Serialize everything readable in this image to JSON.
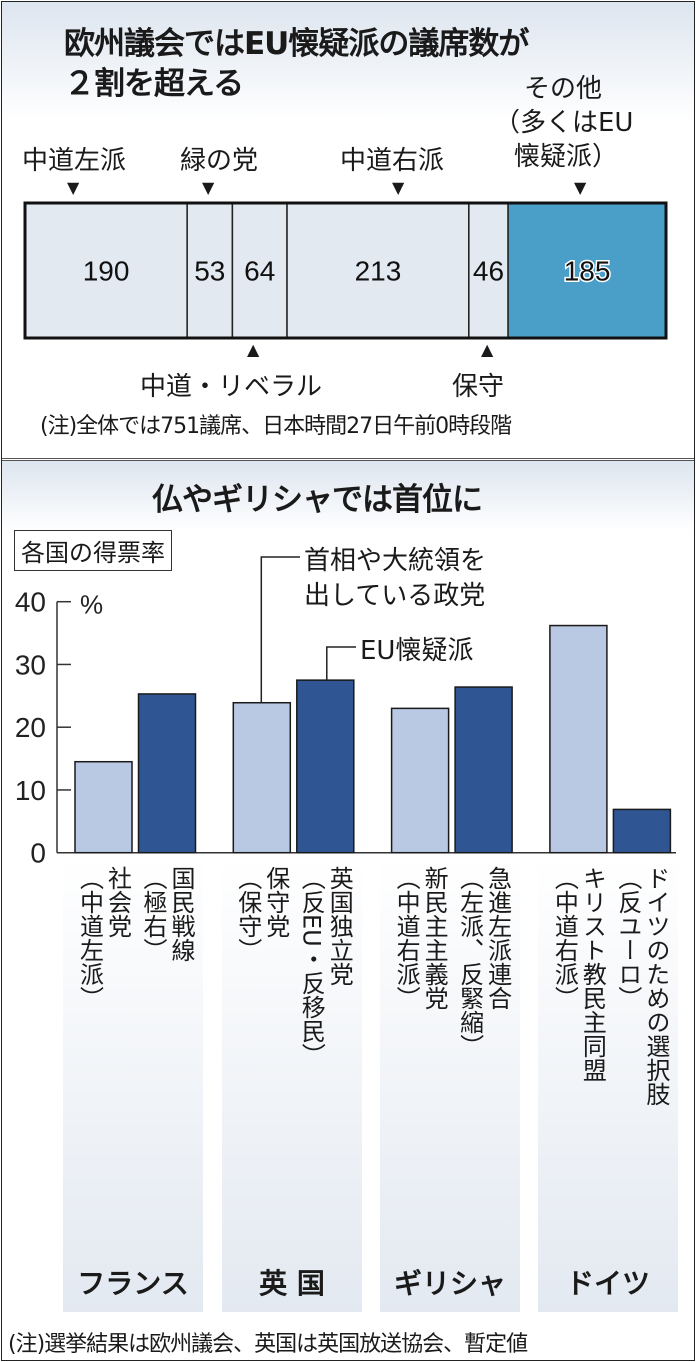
{
  "section1": {
    "title_line1": "欧州議会ではEU懐疑派の議席数が",
    "title_line2": "２割を超える",
    "labels_top": {
      "center_left": "中道左派",
      "greens": "緑の党",
      "center_right": "中道右派",
      "others_line1": "その他",
      "others_line2": "（多くはEU",
      "others_line3": "懐疑派）"
    },
    "labels_bottom": {
      "liberal": "中道・リベラル",
      "conservative": "保守"
    },
    "note": "(注)全体では751議席、日本時間27日午前0時段階"
  },
  "section2": {
    "title": "仏やギリシャでは首位に",
    "box_label": "各国の得票率",
    "annotation_leader_line1": "首相や大統領を",
    "annotation_leader_line2": "出している政党",
    "annotation_eurosceptic": "EU懐疑派",
    "note": "(注)選挙結果は欧州議会、英国は英国放送協会、暫定値"
  },
  "chart_data": [
    {
      "type": "bar",
      "orientation": "horizontal-stacked",
      "total": 751,
      "categories": [
        "中道左派",
        "緑の党",
        "中道・リベラル",
        "中道右派",
        "保守",
        "その他（多くはEU懐疑派）"
      ],
      "values": [
        190,
        53,
        64,
        213,
        46,
        185
      ],
      "value_labels": [
        "190",
        "53",
        "64",
        "213",
        "46",
        "185"
      ],
      "colors": [
        "#e3e9f1",
        "#e3e9f1",
        "#e3e9f1",
        "#e3e9f1",
        "#e3e9f1",
        "#4a9fc9"
      ]
    },
    {
      "type": "bar",
      "ylabel": "%",
      "ylim": [
        0,
        40
      ],
      "yticks": [
        "0",
        "10",
        "20",
        "30",
        "40"
      ],
      "grid": false,
      "groups": [
        {
          "country": "フランス",
          "bars": [
            {
              "label": "社会党\n（中道左派）",
              "value": 14.5,
              "kind": "leader"
            },
            {
              "label": "国民戦線\n（極右）",
              "value": 25.3,
              "kind": "eurosceptic"
            }
          ]
        },
        {
          "country": "英 国",
          "bars": [
            {
              "label": "保守党\n（保守）",
              "value": 23.9,
              "kind": "leader"
            },
            {
              "label": "英国独立党\n（反EU・反移民）",
              "value": 27.5,
              "kind": "eurosceptic"
            }
          ]
        },
        {
          "country": "ギリシャ",
          "bars": [
            {
              "label": "新民主主義党\n（中道右派）",
              "value": 23.0,
              "kind": "leader"
            },
            {
              "label": "急進左派連合\n（左派、反緊縮）",
              "value": 26.4,
              "kind": "eurosceptic"
            }
          ]
        },
        {
          "country": "ドイツ",
          "bars": [
            {
              "label": "キリスト教民主同盟\n（中道右派）",
              "value": 36.2,
              "kind": "leader"
            },
            {
              "label": "ドイツのための選択肢\n（反ユーロ）",
              "value": 6.9,
              "kind": "eurosceptic"
            }
          ]
        }
      ],
      "colors": {
        "leader": "#b9c9e4",
        "eurosceptic": "#2f5592"
      }
    }
  ]
}
